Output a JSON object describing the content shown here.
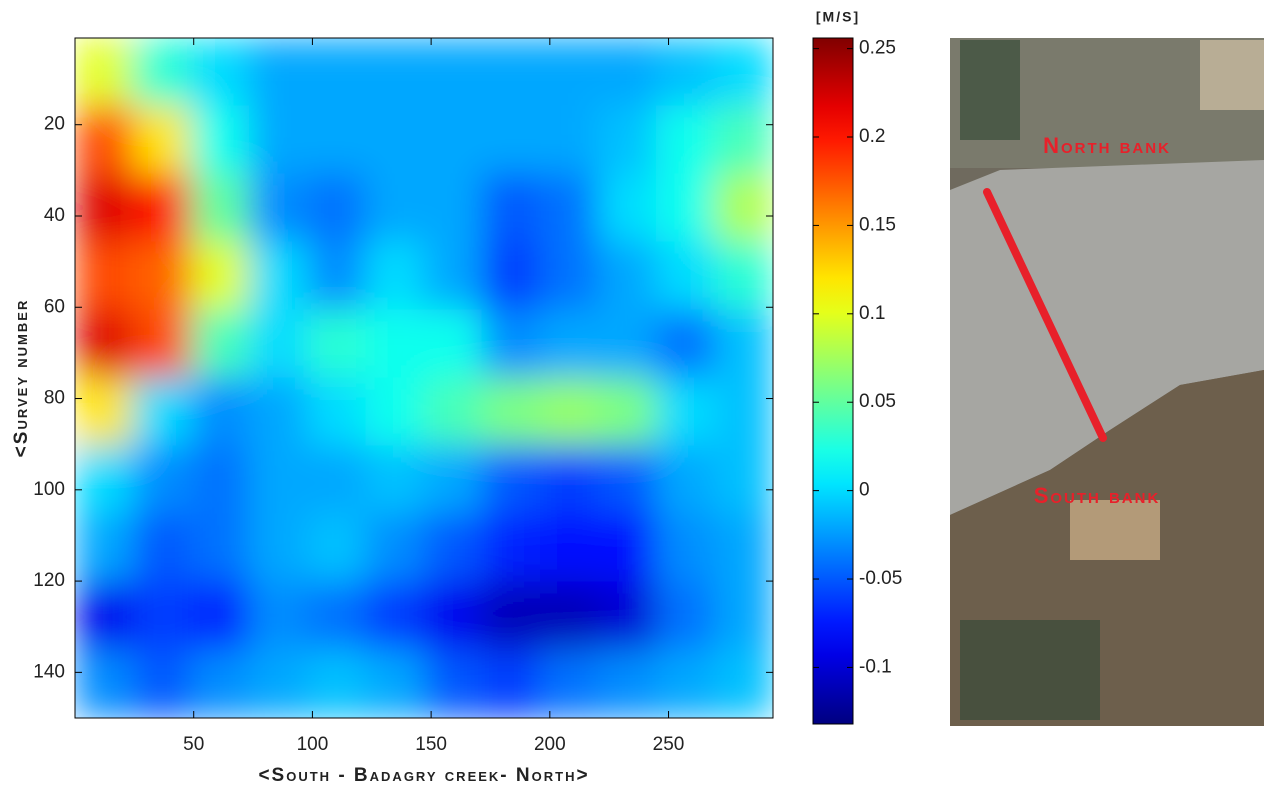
{
  "chart_data": {
    "type": "heatmap",
    "xlabel": "<South - Badagry creek- North>",
    "ylabel": "<Survey number",
    "colorbar_label": "[M/S]",
    "colormap": "jet",
    "xlim": [
      0,
      294
    ],
    "ylim": [
      1,
      150
    ],
    "y_inverted": true,
    "xticks": [
      50,
      100,
      150,
      200,
      250
    ],
    "yticks": [
      20,
      40,
      60,
      80,
      100,
      120,
      140
    ],
    "clim": [
      -0.132,
      0.256
    ],
    "cticks": [
      0.25,
      0.2,
      0.15,
      0.1,
      0.05,
      0,
      -0.05,
      -0.1
    ],
    "x": [
      12.25,
      36.75,
      61.25,
      85.75,
      110.25,
      134.75,
      159.25,
      183.75,
      208.25,
      232.75,
      257.25,
      281.75
    ],
    "y": [
      8.45,
      23.35,
      38.25,
      53.15,
      68.05,
      82.95,
      97.85,
      112.75,
      127.65,
      142.55
    ],
    "z": [
      [
        0.1,
        0.03,
        0.0,
        -0.02,
        -0.02,
        -0.02,
        -0.02,
        -0.02,
        -0.02,
        -0.02,
        -0.01,
        0.0
      ],
      [
        0.18,
        0.12,
        0.02,
        -0.02,
        -0.02,
        -0.02,
        -0.02,
        -0.02,
        -0.02,
        -0.01,
        0.02,
        0.04
      ],
      [
        0.22,
        0.2,
        0.05,
        -0.03,
        -0.04,
        -0.02,
        -0.02,
        -0.05,
        -0.04,
        0.0,
        0.02,
        0.08
      ],
      [
        0.18,
        0.17,
        0.1,
        0.0,
        -0.03,
        0.0,
        -0.02,
        -0.06,
        -0.04,
        -0.02,
        0.0,
        0.03
      ],
      [
        0.22,
        0.18,
        0.04,
        0.0,
        0.03,
        0.02,
        0.02,
        -0.03,
        -0.02,
        -0.02,
        -0.04,
        -0.01
      ],
      [
        0.12,
        0.0,
        -0.03,
        -0.02,
        0.0,
        0.02,
        0.04,
        0.06,
        0.07,
        0.06,
        0.0,
        -0.01
      ],
      [
        0.0,
        -0.03,
        -0.04,
        -0.02,
        -0.02,
        -0.01,
        -0.02,
        -0.05,
        -0.06,
        -0.05,
        -0.02,
        -0.01
      ],
      [
        -0.02,
        -0.05,
        -0.04,
        -0.02,
        -0.01,
        -0.03,
        -0.05,
        -0.07,
        -0.08,
        -0.08,
        -0.03,
        -0.02
      ],
      [
        -0.09,
        -0.06,
        -0.07,
        -0.03,
        -0.04,
        -0.06,
        -0.09,
        -0.11,
        -0.11,
        -0.1,
        -0.04,
        -0.02
      ],
      [
        -0.03,
        -0.05,
        -0.03,
        -0.02,
        -0.01,
        -0.02,
        -0.05,
        -0.06,
        -0.04,
        -0.03,
        -0.02,
        -0.01
      ]
    ]
  },
  "image": {
    "north_label": "North bank",
    "south_label": "South bank"
  }
}
